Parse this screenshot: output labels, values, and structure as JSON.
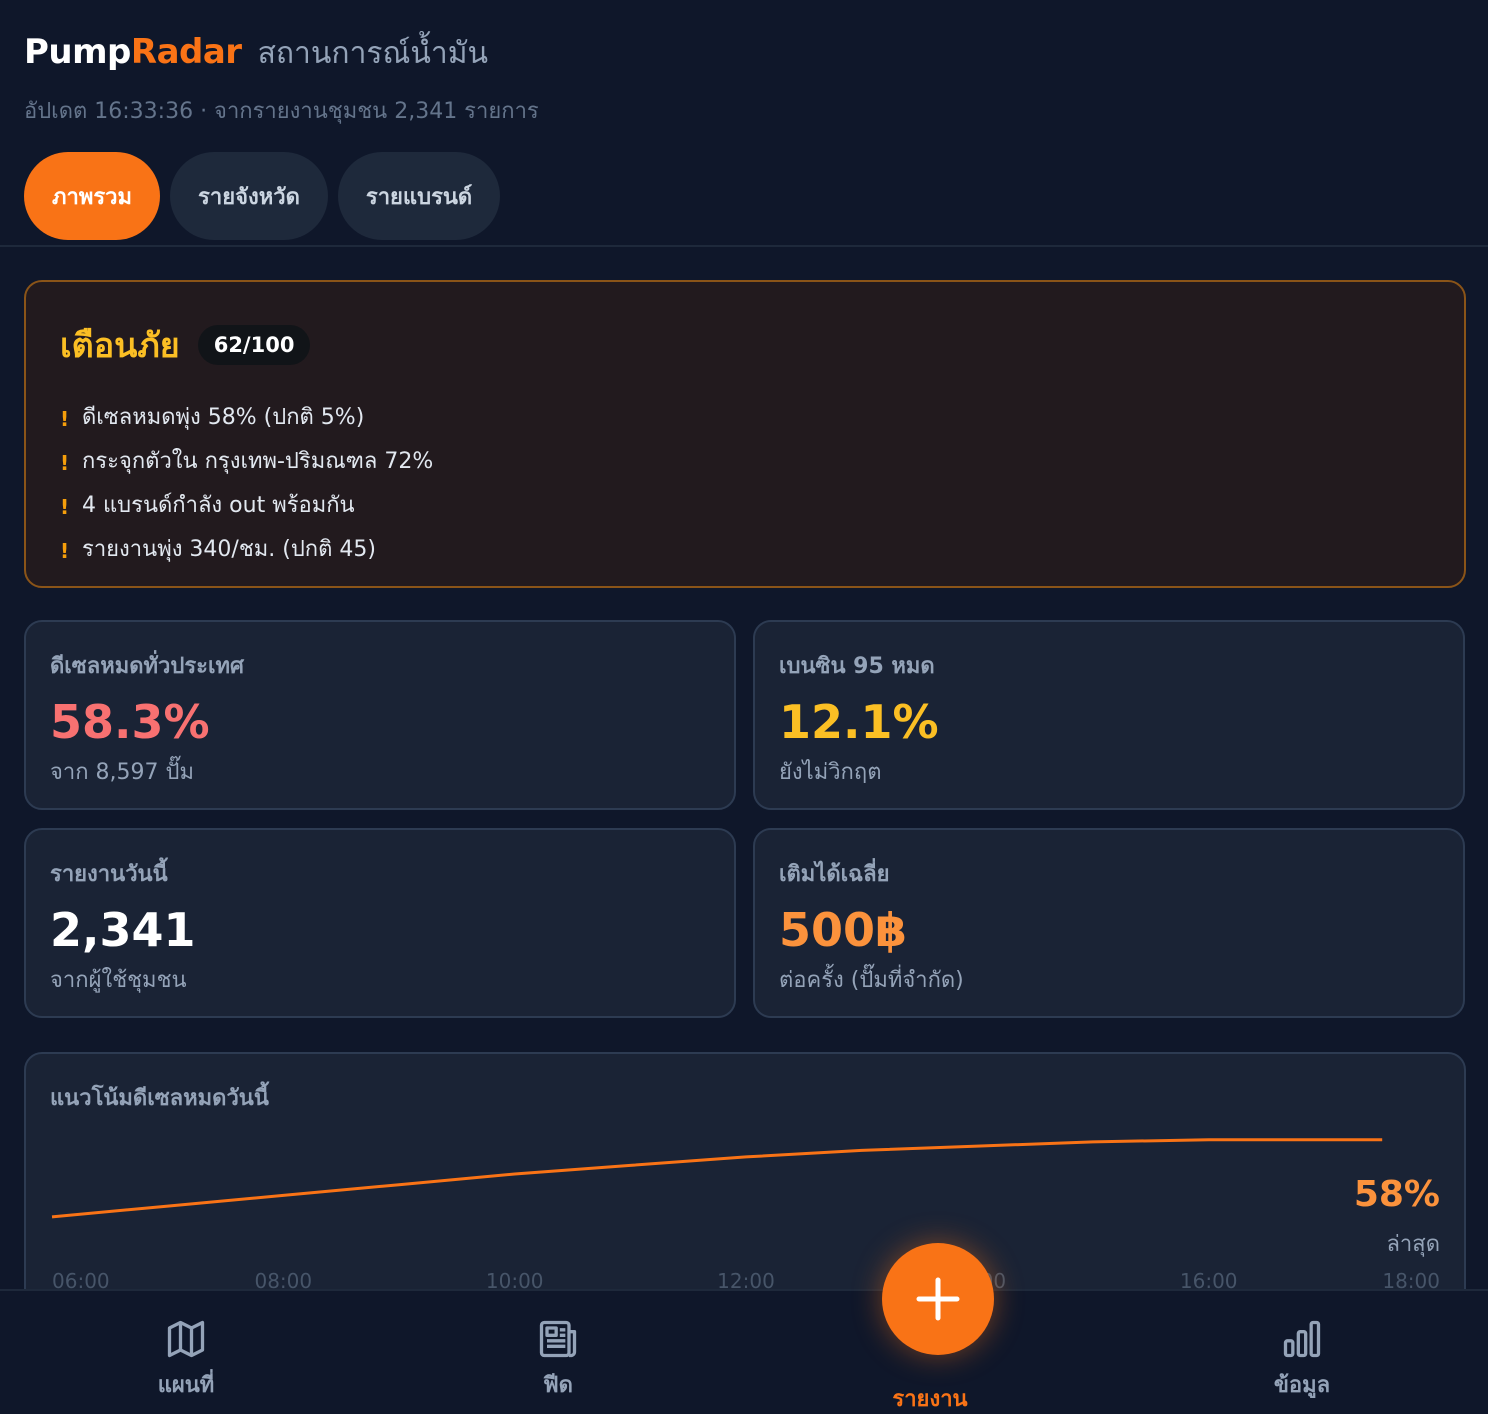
{
  "header": {
    "brand_primary": "Pump",
    "brand_accent": "Radar",
    "subtitle": "สถานการณ์น้ำมัน",
    "updated": "อัปเดต 16:33:36 · จากรายงานชุมชน 2,341 รายการ"
  },
  "tabs": [
    {
      "label": "ภาพรวม",
      "active": true
    },
    {
      "label": "รายจังหวัด",
      "active": false
    },
    {
      "label": "รายแบรนด์",
      "active": false
    }
  ],
  "alert": {
    "title": "เตือนภัย",
    "score": "62/100",
    "items": [
      "ดีเซลหมดพุ่ง 58% (ปกติ 5%)",
      "กระจุกตัวใน กรุงเทพ-ปริมณฑล 72%",
      "4 แบรนด์กำลัง out พร้อมกัน",
      "รายงานพุ่ง 340/ชม. (ปกติ 45)"
    ]
  },
  "stats": [
    {
      "label": "ดีเซลหมดทั่วประเทศ",
      "value": "58.3%",
      "note": "จาก 8,597 ปั๊ม",
      "color": "#f87171"
    },
    {
      "label": "เบนซิน 95 หมด",
      "value": "12.1%",
      "note": "ยังไม่วิกฤต",
      "color": "#fbbf24"
    },
    {
      "label": "รายงานวันนี้",
      "value": "2,341",
      "note": "จากผู้ใช้ชุมชน",
      "color": "#ffffff"
    },
    {
      "label": "เติมได้เฉลี่ย",
      "value": "500฿",
      "note": "ต่อครั้ง (ปั๊มที่จำกัด)",
      "color": "#fb923c"
    }
  ],
  "trend": {
    "title": "แนวโน้มดีเซลหมดวันนี้",
    "latest_value": "58%",
    "latest_label": "ล่าสุด"
  },
  "chart_data": {
    "type": "line",
    "title": "แนวโน้มดีเซลหมดวันนี้",
    "x_ticks": [
      "06:00",
      "08:00",
      "10:00",
      "12:00",
      "14:00",
      "16:00",
      "18:00"
    ],
    "x": [
      6,
      7,
      8,
      9,
      10,
      11,
      12,
      13,
      14,
      15,
      16,
      17.5
    ],
    "values": [
      22,
      27,
      32,
      37,
      42,
      46,
      50,
      53,
      55,
      57,
      58,
      58
    ],
    "ylim": [
      0,
      70
    ],
    "xlim": [
      6,
      18
    ],
    "color": "#f97316"
  },
  "nav": {
    "items": [
      {
        "label": "แผนที่",
        "icon": "map-icon"
      },
      {
        "label": "ฟีด",
        "icon": "news-icon"
      },
      {
        "label": "รายงาน",
        "icon": "plus-icon"
      },
      {
        "label": "ข้อมูล",
        "icon": "bar-chart-icon"
      }
    ]
  },
  "colors": {
    "accent": "#f97316",
    "background": "#0f172a",
    "card": "#1a2335",
    "warning": "#fbbf24"
  }
}
